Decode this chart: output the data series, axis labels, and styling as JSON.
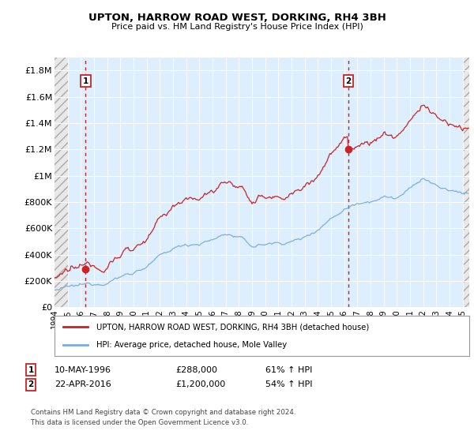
{
  "title": "UPTON, HARROW ROAD WEST, DORKING, RH4 3BH",
  "subtitle": "Price paid vs. HM Land Registry's House Price Index (HPI)",
  "ylim": [
    0,
    1900000
  ],
  "xlim_start": 1994.0,
  "xlim_end": 2025.5,
  "yticks": [
    0,
    200000,
    400000,
    600000,
    800000,
    1000000,
    1200000,
    1400000,
    1600000,
    1800000
  ],
  "ytick_labels": [
    "£0",
    "£200K",
    "£400K",
    "£600K",
    "£800K",
    "£1M",
    "£1.2M",
    "£1.4M",
    "£1.6M",
    "£1.8M"
  ],
  "hpi_color": "#7aabdb",
  "price_color": "#cc2222",
  "transaction1_date": 1996.36,
  "transaction1_price": 288000,
  "transaction2_date": 2016.31,
  "transaction2_price": 1200000,
  "legend_label1": "UPTON, HARROW ROAD WEST, DORKING, RH4 3BH (detached house)",
  "legend_label2": "HPI: Average price, detached house, Mole Valley",
  "note1_num": "1",
  "note1_date": "10-MAY-1996",
  "note1_price": "£288,000",
  "note1_hpi": "61% ↑ HPI",
  "note2_num": "2",
  "note2_date": "22-APR-2016",
  "note2_price": "£1,200,000",
  "note2_hpi": "54% ↑ HPI",
  "footer": "Contains HM Land Registry data © Crown copyright and database right 2024.\nThis data is licensed under the Open Government Licence v3.0.",
  "bg_color": "#ddeeff",
  "grid_color": "#ffffff"
}
